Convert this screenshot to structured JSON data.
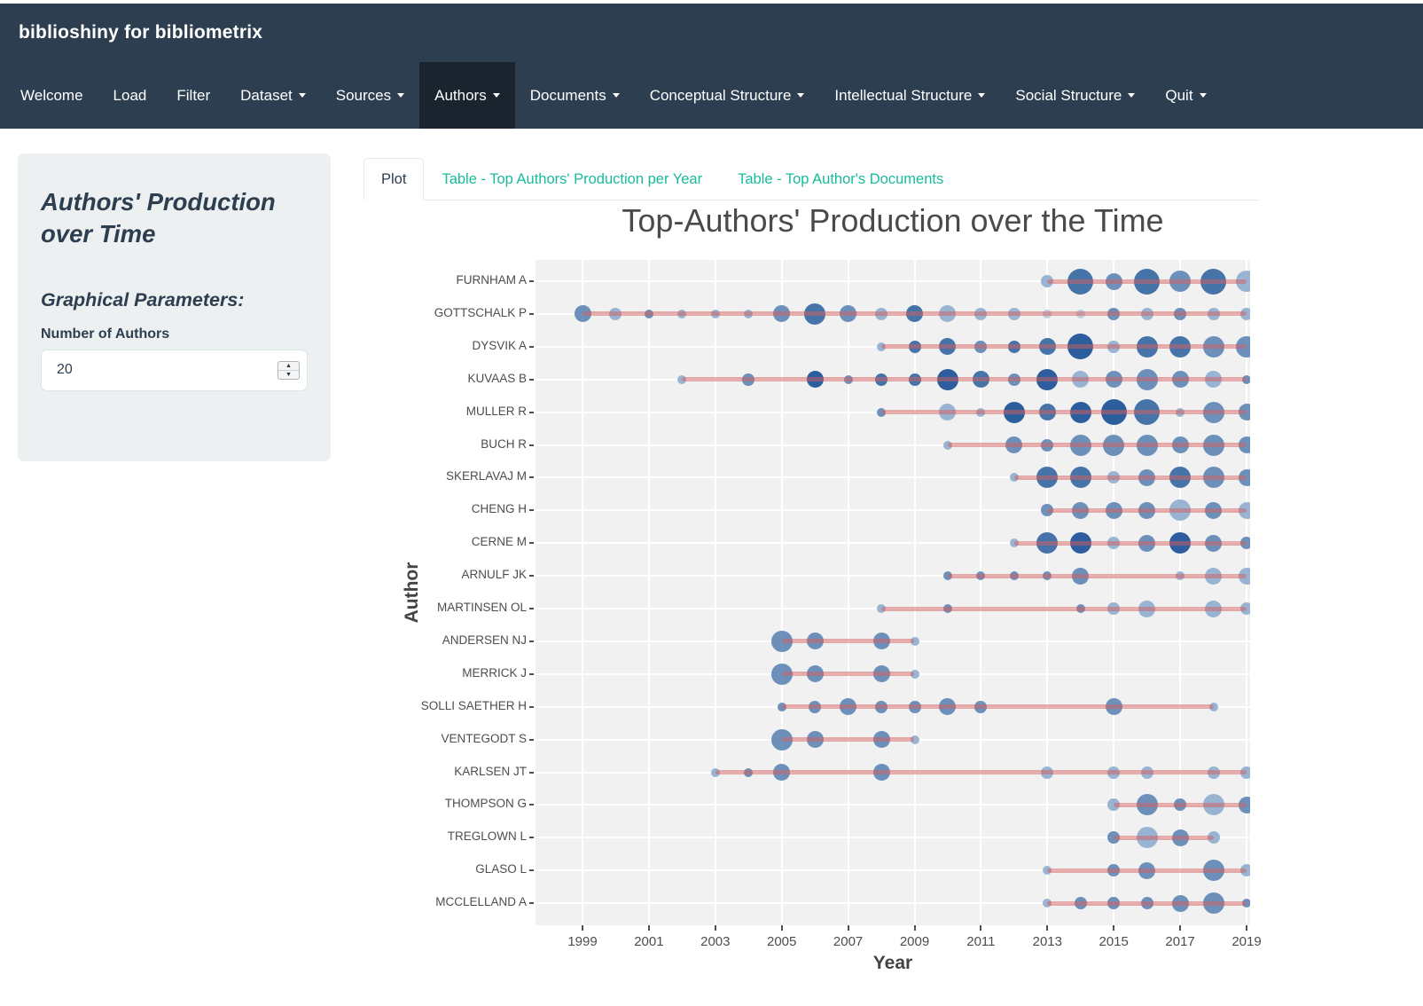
{
  "navbar": {
    "brand": "biblioshiny for bibliometrix",
    "items": [
      {
        "label": "Welcome",
        "dropdown": false,
        "active": false
      },
      {
        "label": "Load",
        "dropdown": false,
        "active": false
      },
      {
        "label": "Filter",
        "dropdown": false,
        "active": false
      },
      {
        "label": "Dataset",
        "dropdown": true,
        "active": false
      },
      {
        "label": "Sources",
        "dropdown": true,
        "active": false
      },
      {
        "label": "Authors",
        "dropdown": true,
        "active": true
      },
      {
        "label": "Documents",
        "dropdown": true,
        "active": false
      },
      {
        "label": "Conceptual Structure",
        "dropdown": true,
        "active": false
      },
      {
        "label": "Intellectual Structure",
        "dropdown": true,
        "active": false
      },
      {
        "label": "Social Structure",
        "dropdown": true,
        "active": false
      },
      {
        "label": "Quit",
        "dropdown": true,
        "active": false
      }
    ]
  },
  "sidebar": {
    "title": "Authors' Production over Time",
    "params_heading": "Graphical Parameters:",
    "field_label": "Number of Authors",
    "field_value": "20"
  },
  "tabs": [
    {
      "label": "Plot",
      "active": true
    },
    {
      "label": "Table - Top Authors' Production per Year",
      "active": false
    },
    {
      "label": "Table - Top Author's Documents",
      "active": false
    }
  ],
  "colors": {
    "navbar_bg": "#2c3e50",
    "navbar_active_bg": "#1a242f",
    "accent_teal": "#18bc9c",
    "well_bg": "#ecf0f1",
    "plot_bg": "#f1f1f1",
    "timeline_pink": "#e9abab",
    "bubble_dark": "#1d5296",
    "bubble_light": "#b9cadf"
  },
  "chart_data": {
    "type": "scatter",
    "title": "Top-Authors' Production over the Time",
    "xlabel": "Year",
    "ylabel": "Author",
    "x_ticks": [
      1999,
      2001,
      2003,
      2005,
      2007,
      2009,
      2011,
      2013,
      2015,
      2017,
      2019
    ],
    "x_range": [
      1997.6,
      2019.1
    ],
    "grid": "white gridlines on light-gray panel",
    "legend_position": "none",
    "point_format": [
      "year",
      "size_rank_1_5 (articles per year, bubble size)",
      "shade_rank_1_5 (citations intensity, bubble darkness)"
    ],
    "size_radius_px": [
      0,
      5,
      7,
      9.5,
      12,
      14.5
    ],
    "shade_colors": {
      "1": "#b9cadf",
      "2": "#92afd0",
      "3": "#6389b6",
      "4": "#396ba3",
      "5": "#1d5296"
    },
    "series": [
      {
        "author": "FURNHAM A",
        "line": [
          2013,
          2019
        ],
        "points": [
          [
            2013,
            2,
            2
          ],
          [
            2014,
            5,
            4
          ],
          [
            2015,
            3,
            3
          ],
          [
            2016,
            5,
            4
          ],
          [
            2017,
            4,
            3
          ],
          [
            2018,
            5,
            4
          ],
          [
            2019,
            4,
            2
          ]
        ]
      },
      {
        "author": "GOTTSCHALK P",
        "line": [
          1999,
          2019
        ],
        "points": [
          [
            1999,
            3,
            3
          ],
          [
            2000,
            2,
            2
          ],
          [
            2001,
            1,
            3
          ],
          [
            2002,
            1,
            2
          ],
          [
            2003,
            1,
            2
          ],
          [
            2004,
            1,
            2
          ],
          [
            2005,
            3,
            3
          ],
          [
            2006,
            4,
            4
          ],
          [
            2007,
            3,
            3
          ],
          [
            2008,
            2,
            2
          ],
          [
            2009,
            3,
            4
          ],
          [
            2010,
            3,
            2
          ],
          [
            2011,
            2,
            2
          ],
          [
            2012,
            2,
            2
          ],
          [
            2013,
            1,
            1
          ],
          [
            2014,
            1,
            1
          ],
          [
            2015,
            2,
            3
          ],
          [
            2016,
            2,
            2
          ],
          [
            2017,
            2,
            3
          ],
          [
            2018,
            2,
            2
          ],
          [
            2019,
            2,
            2
          ]
        ]
      },
      {
        "author": "DYSVIK A",
        "line": [
          2008,
          2019
        ],
        "points": [
          [
            2008,
            1,
            2
          ],
          [
            2009,
            2,
            4
          ],
          [
            2010,
            3,
            4
          ],
          [
            2011,
            2,
            3
          ],
          [
            2012,
            2,
            4
          ],
          [
            2013,
            3,
            4
          ],
          [
            2014,
            5,
            5
          ],
          [
            2015,
            2,
            2
          ],
          [
            2016,
            4,
            4
          ],
          [
            2017,
            4,
            4
          ],
          [
            2018,
            4,
            3
          ],
          [
            2019,
            4,
            3
          ]
        ]
      },
      {
        "author": "KUVAAS B",
        "line": [
          2002,
          2019
        ],
        "points": [
          [
            2002,
            1,
            2
          ],
          [
            2004,
            2,
            3
          ],
          [
            2006,
            3,
            5
          ],
          [
            2007,
            1,
            3
          ],
          [
            2008,
            2,
            4
          ],
          [
            2009,
            2,
            4
          ],
          [
            2010,
            4,
            5
          ],
          [
            2011,
            3,
            4
          ],
          [
            2012,
            2,
            3
          ],
          [
            2013,
            4,
            5
          ],
          [
            2014,
            3,
            2
          ],
          [
            2015,
            3,
            3
          ],
          [
            2016,
            4,
            3
          ],
          [
            2017,
            3,
            3
          ],
          [
            2018,
            3,
            2
          ],
          [
            2019,
            1,
            3
          ]
        ]
      },
      {
        "author": "MULLER R",
        "line": [
          2008,
          2019
        ],
        "points": [
          [
            2008,
            1,
            3
          ],
          [
            2010,
            3,
            2
          ],
          [
            2011,
            1,
            2
          ],
          [
            2012,
            4,
            5
          ],
          [
            2013,
            3,
            4
          ],
          [
            2014,
            4,
            5
          ],
          [
            2015,
            5,
            5
          ],
          [
            2016,
            5,
            4
          ],
          [
            2017,
            1,
            2
          ],
          [
            2018,
            4,
            3
          ],
          [
            2019,
            3,
            3
          ]
        ]
      },
      {
        "author": "BUCH R",
        "line": [
          2010,
          2019
        ],
        "points": [
          [
            2010,
            1,
            2
          ],
          [
            2012,
            3,
            3
          ],
          [
            2013,
            2,
            3
          ],
          [
            2014,
            4,
            3
          ],
          [
            2015,
            4,
            3
          ],
          [
            2016,
            4,
            3
          ],
          [
            2017,
            3,
            3
          ],
          [
            2018,
            4,
            3
          ],
          [
            2019,
            3,
            3
          ]
        ]
      },
      {
        "author": "SKERLAVAJ M",
        "line": [
          2012,
          2019
        ],
        "points": [
          [
            2012,
            1,
            2
          ],
          [
            2013,
            4,
            4
          ],
          [
            2014,
            4,
            4
          ],
          [
            2015,
            2,
            2
          ],
          [
            2016,
            3,
            3
          ],
          [
            2017,
            4,
            4
          ],
          [
            2018,
            4,
            3
          ],
          [
            2019,
            3,
            3
          ]
        ]
      },
      {
        "author": "CHENG H",
        "line": [
          2013,
          2019
        ],
        "points": [
          [
            2013,
            2,
            3
          ],
          [
            2014,
            3,
            3
          ],
          [
            2015,
            3,
            3
          ],
          [
            2016,
            3,
            3
          ],
          [
            2017,
            4,
            2
          ],
          [
            2018,
            3,
            3
          ],
          [
            2019,
            3,
            2
          ]
        ]
      },
      {
        "author": "CERNE M",
        "line": [
          2012,
          2019
        ],
        "points": [
          [
            2012,
            1,
            2
          ],
          [
            2013,
            4,
            4
          ],
          [
            2014,
            4,
            5
          ],
          [
            2015,
            2,
            2
          ],
          [
            2016,
            3,
            3
          ],
          [
            2017,
            4,
            5
          ],
          [
            2018,
            3,
            3
          ],
          [
            2019,
            2,
            3
          ]
        ]
      },
      {
        "author": "ARNULF JK",
        "line": [
          2010,
          2019
        ],
        "points": [
          [
            2010,
            1,
            3
          ],
          [
            2011,
            1,
            3
          ],
          [
            2012,
            1,
            3
          ],
          [
            2013,
            1,
            3
          ],
          [
            2014,
            3,
            3
          ],
          [
            2017,
            1,
            2
          ],
          [
            2018,
            3,
            2
          ],
          [
            2019,
            3,
            2
          ]
        ]
      },
      {
        "author": "MARTINSEN OL",
        "line": [
          2008,
          2019
        ],
        "points": [
          [
            2008,
            1,
            2
          ],
          [
            2010,
            1,
            3
          ],
          [
            2014,
            1,
            3
          ],
          [
            2015,
            2,
            2
          ],
          [
            2016,
            3,
            2
          ],
          [
            2018,
            3,
            2
          ],
          [
            2019,
            2,
            2
          ]
        ]
      },
      {
        "author": "ANDERSEN NJ",
        "line": [
          2005,
          2009
        ],
        "points": [
          [
            2005,
            4,
            3
          ],
          [
            2006,
            3,
            3
          ],
          [
            2008,
            3,
            3
          ],
          [
            2009,
            1,
            2
          ]
        ]
      },
      {
        "author": "MERRICK J",
        "line": [
          2005,
          2009
        ],
        "points": [
          [
            2005,
            4,
            3
          ],
          [
            2006,
            3,
            3
          ],
          [
            2008,
            3,
            3
          ],
          [
            2009,
            1,
            2
          ]
        ]
      },
      {
        "author": "SOLLI SAETHER H",
        "line": [
          2005,
          2018
        ],
        "points": [
          [
            2005,
            1,
            3
          ],
          [
            2006,
            2,
            3
          ],
          [
            2007,
            3,
            3
          ],
          [
            2008,
            2,
            3
          ],
          [
            2009,
            2,
            3
          ],
          [
            2010,
            3,
            3
          ],
          [
            2011,
            2,
            3
          ],
          [
            2015,
            3,
            3
          ],
          [
            2018,
            1,
            2
          ]
        ]
      },
      {
        "author": "VENTEGODT S",
        "line": [
          2005,
          2009
        ],
        "points": [
          [
            2005,
            4,
            3
          ],
          [
            2006,
            3,
            3
          ],
          [
            2008,
            3,
            3
          ],
          [
            2009,
            1,
            2
          ]
        ]
      },
      {
        "author": "KARLSEN JT",
        "line": [
          2003,
          2019
        ],
        "points": [
          [
            2003,
            1,
            2
          ],
          [
            2004,
            1,
            3
          ],
          [
            2005,
            3,
            3
          ],
          [
            2008,
            3,
            3
          ],
          [
            2013,
            2,
            2
          ],
          [
            2015,
            2,
            2
          ],
          [
            2016,
            2,
            2
          ],
          [
            2018,
            2,
            2
          ],
          [
            2019,
            2,
            2
          ]
        ]
      },
      {
        "author": "THOMPSON G",
        "line": [
          2015,
          2019
        ],
        "points": [
          [
            2015,
            2,
            2
          ],
          [
            2016,
            4,
            3
          ],
          [
            2017,
            2,
            3
          ],
          [
            2018,
            4,
            2
          ],
          [
            2019,
            3,
            3
          ]
        ]
      },
      {
        "author": "TREGLOWN L",
        "line": [
          2015,
          2018
        ],
        "points": [
          [
            2015,
            2,
            3
          ],
          [
            2016,
            4,
            2
          ],
          [
            2017,
            3,
            3
          ],
          [
            2018,
            2,
            2
          ]
        ]
      },
      {
        "author": "GLASO L",
        "line": [
          2013,
          2019
        ],
        "points": [
          [
            2013,
            1,
            2
          ],
          [
            2015,
            2,
            3
          ],
          [
            2016,
            3,
            3
          ],
          [
            2018,
            4,
            3
          ],
          [
            2019,
            2,
            2
          ]
        ]
      },
      {
        "author": "MCCLELLAND A",
        "line": [
          2013,
          2019
        ],
        "points": [
          [
            2013,
            1,
            2
          ],
          [
            2014,
            2,
            3
          ],
          [
            2015,
            2,
            3
          ],
          [
            2016,
            2,
            3
          ],
          [
            2017,
            3,
            3
          ],
          [
            2018,
            4,
            3
          ],
          [
            2019,
            1,
            3
          ]
        ]
      }
    ]
  }
}
